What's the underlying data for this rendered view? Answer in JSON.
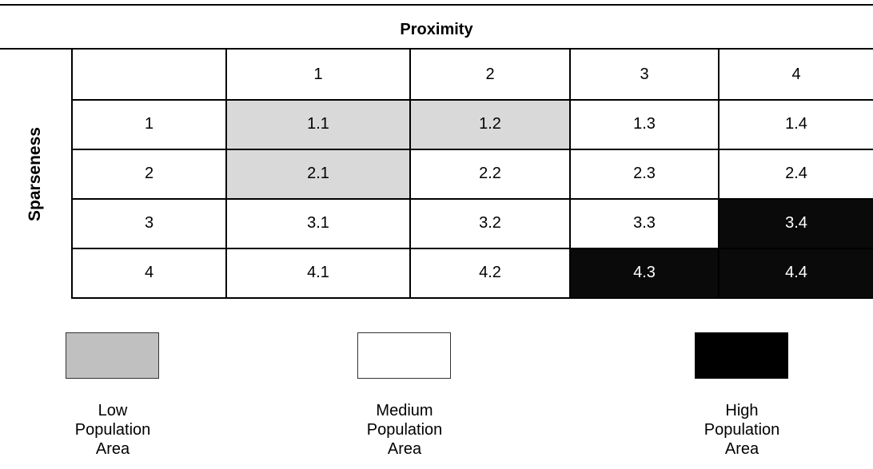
{
  "header": {
    "column_axis": "Proximity",
    "row_axis": "Sparseness"
  },
  "columns": [
    "",
    "1",
    "2",
    "3",
    "4"
  ],
  "rows": [
    {
      "label": "1",
      "cells": [
        {
          "value": "1.1",
          "category": "low"
        },
        {
          "value": "1.2",
          "category": "low"
        },
        {
          "value": "1.3",
          "category": "medium"
        },
        {
          "value": "1.4",
          "category": "medium"
        }
      ]
    },
    {
      "label": "2",
      "cells": [
        {
          "value": "2.1",
          "category": "low"
        },
        {
          "value": "2.2",
          "category": "medium"
        },
        {
          "value": "2.3",
          "category": "medium"
        },
        {
          "value": "2.4",
          "category": "medium"
        }
      ]
    },
    {
      "label": "3",
      "cells": [
        {
          "value": "3.1",
          "category": "medium"
        },
        {
          "value": "3.2",
          "category": "medium"
        },
        {
          "value": "3.3",
          "category": "medium"
        },
        {
          "value": "3.4",
          "category": "high"
        }
      ]
    },
    {
      "label": "4",
      "cells": [
        {
          "value": "4.1",
          "category": "medium"
        },
        {
          "value": "4.2",
          "category": "medium"
        },
        {
          "value": "4.3",
          "category": "high"
        },
        {
          "value": "4.4",
          "category": "high"
        }
      ]
    }
  ],
  "legend": [
    {
      "key": "low",
      "line1": "Low",
      "line2": "Population",
      "line3": "Area",
      "color": "#c0c0c0"
    },
    {
      "key": "medium",
      "line1": "Medium",
      "line2": "Population",
      "line3": "Area",
      "color": "#ffffff"
    },
    {
      "key": "high",
      "line1": "High",
      "line2": "Population",
      "line3": "Area",
      "color": "#000000"
    }
  ],
  "cell_colors": {
    "low": "#d9d9d9",
    "medium": "#ffffff",
    "high": "#0a0a0a"
  }
}
